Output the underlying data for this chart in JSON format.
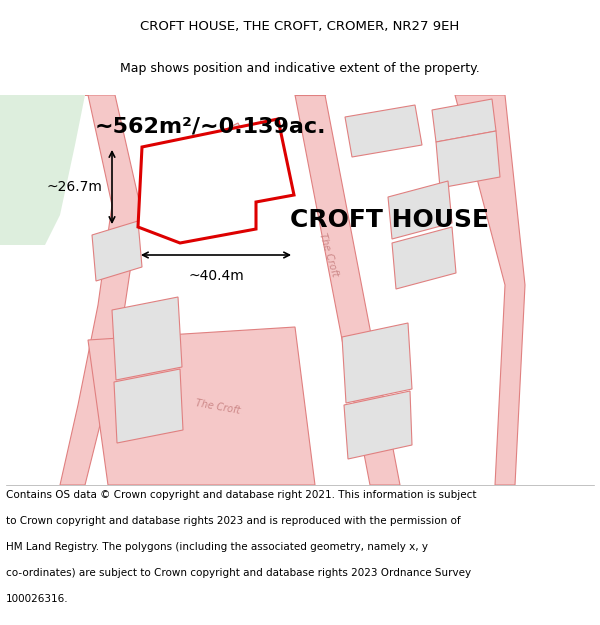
{
  "title_line1": "CROFT HOUSE, THE CROFT, CROMER, NR27 9EH",
  "title_line2": "Map shows position and indicative extent of the property.",
  "property_label": "CROFT HOUSE",
  "area_label": "~562m²/~0.139ac.",
  "width_label": "~40.4m",
  "height_label": "~26.7m",
  "footer_lines": [
    "Contains OS data © Crown copyright and database right 2021. This information is subject",
    "to Crown copyright and database rights 2023 and is reproduced with the permission of",
    "HM Land Registry. The polygons (including the associated geometry, namely x, y",
    "co-ordinates) are subject to Crown copyright and database rights 2023 Ordnance Survey",
    "100026316."
  ],
  "bg_color": "#ffffff",
  "map_bg": "#f0f0f0",
  "road_color": "#f5c8c8",
  "road_stroke": "#e08080",
  "building_fill": "#e2e2e2",
  "building_stroke": "#e08080",
  "highlight_color": "#dd0000",
  "green_color": "#ddeedd",
  "title_fontsize": 9.5,
  "subtitle_fontsize": 9.0,
  "area_fontsize": 16,
  "property_name_fontsize": 18,
  "dim_fontsize": 10,
  "road_label_fontsize": 7,
  "footer_fontsize": 7.5
}
